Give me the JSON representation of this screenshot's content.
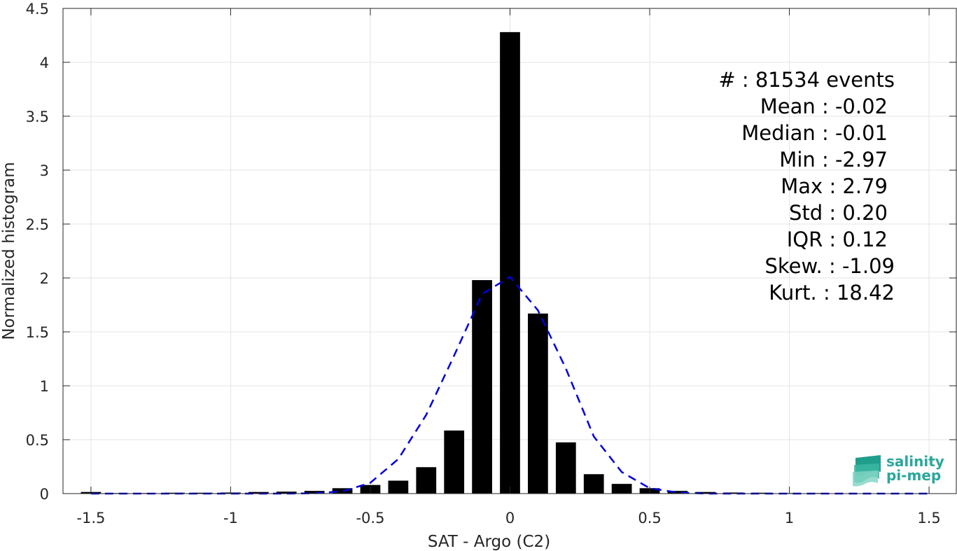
{
  "chart_data": {
    "type": "bar",
    "xlabel": "SAT - Argo (C2)",
    "ylabel": "Normalized histogram",
    "xlim": [
      -1.6,
      1.6
    ],
    "ylim": [
      0,
      4.5
    ],
    "xticks": [
      -1.5,
      -1,
      -0.5,
      0,
      0.5,
      1,
      1.5
    ],
    "xtick_labels": [
      "-1.5",
      "-1",
      "-0.5",
      "0",
      "0.5",
      "1",
      "1.5"
    ],
    "yticks": [
      0,
      0.5,
      1,
      1.5,
      2,
      2.5,
      3,
      3.5,
      4,
      4.5
    ],
    "ytick_labels": [
      "0",
      "0.5",
      "1",
      "1.5",
      "2",
      "2.5",
      "3",
      "3.5",
      "4",
      "4.5"
    ],
    "grid": true,
    "bin_width": 0.1,
    "bar_color": "#000000",
    "bins": {
      "centers": [
        -1.5,
        -1.4,
        -1.3,
        -1.2,
        -1.1,
        -1.0,
        -0.9,
        -0.8,
        -0.7,
        -0.6,
        -0.5,
        -0.4,
        -0.3,
        -0.2,
        -0.1,
        0.0,
        0.1,
        0.2,
        0.3,
        0.4,
        0.5,
        0.6,
        0.7,
        0.8,
        0.9,
        1.0,
        1.1,
        1.2,
        1.3,
        1.4,
        1.5
      ],
      "values": [
        0.015,
        0.005,
        0.005,
        0.008,
        0.008,
        0.01,
        0.015,
        0.018,
        0.025,
        0.05,
        0.08,
        0.12,
        0.245,
        0.585,
        1.98,
        4.28,
        1.67,
        0.475,
        0.18,
        0.09,
        0.05,
        0.025,
        0.015,
        0.01,
        0.008,
        0.005,
        0.005,
        0.003,
        0.003,
        0.003,
        0.003
      ]
    },
    "fit_curve": {
      "name": "",
      "style": "dashed",
      "color": "#0000dd",
      "x": [
        -1.5,
        -1.4,
        -1.3,
        -1.2,
        -1.1,
        -1.0,
        -0.9,
        -0.8,
        -0.7,
        -0.6,
        -0.5,
        -0.4,
        -0.3,
        -0.2,
        -0.1,
        0.0,
        0.1,
        0.2,
        0.3,
        0.4,
        0.5,
        0.6,
        0.7,
        0.8,
        0.9,
        1.0,
        1.1,
        1.2,
        1.3,
        1.4,
        1.5
      ],
      "y": [
        0,
        0,
        0,
        0,
        0,
        0,
        0,
        0,
        0.003,
        0.02,
        0.1,
        0.32,
        0.73,
        1.28,
        1.85,
        2.01,
        1.7,
        1.16,
        0.53,
        0.2,
        0.05,
        0.01,
        0,
        0,
        0,
        0,
        0,
        0,
        0,
        0,
        0
      ]
    },
    "stats": [
      {
        "label": "#  : 81534 events"
      },
      {
        "label": "Mean : -0.02"
      },
      {
        "label": "Median : -0.01"
      },
      {
        "label": "Min : -2.97"
      },
      {
        "label": "Max : 2.79"
      },
      {
        "label": "Std : 0.20"
      },
      {
        "label": "IQR : 0.12"
      },
      {
        "label": "Skew. : -1.09"
      },
      {
        "label": "Kurt. : 18.42"
      }
    ]
  },
  "logo": {
    "line1": "salinity",
    "line2": "pi-mep",
    "color": "#2aa79b"
  }
}
